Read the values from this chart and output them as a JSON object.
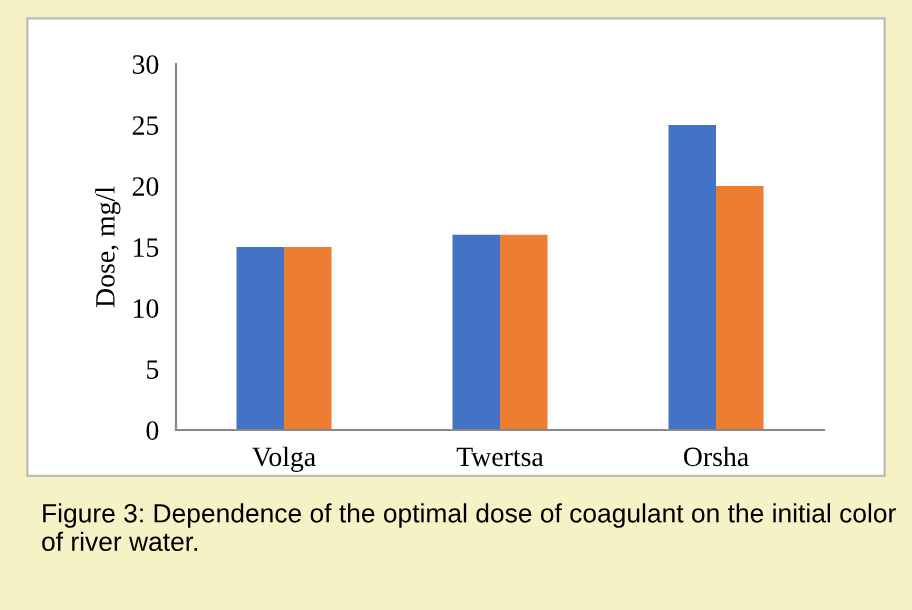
{
  "chart_data": {
    "type": "bar",
    "categories": [
      "Volga",
      "Twertsa",
      "Orsha"
    ],
    "series": [
      {
        "color": "#4472c4",
        "values": [
          15,
          16,
          25
        ]
      },
      {
        "color": "#ed7d31",
        "values": [
          15,
          16,
          20
        ]
      }
    ],
    "ylabel": "Dose, mg/l",
    "ylim": [
      0,
      30
    ],
    "yticks": [
      0,
      5,
      10,
      15,
      20,
      25,
      30
    ],
    "grid": false,
    "legend": false,
    "annotations": [
      "Figure 3: Dependence of the optimal dose of coagulant on the initial color of river water."
    ]
  }
}
